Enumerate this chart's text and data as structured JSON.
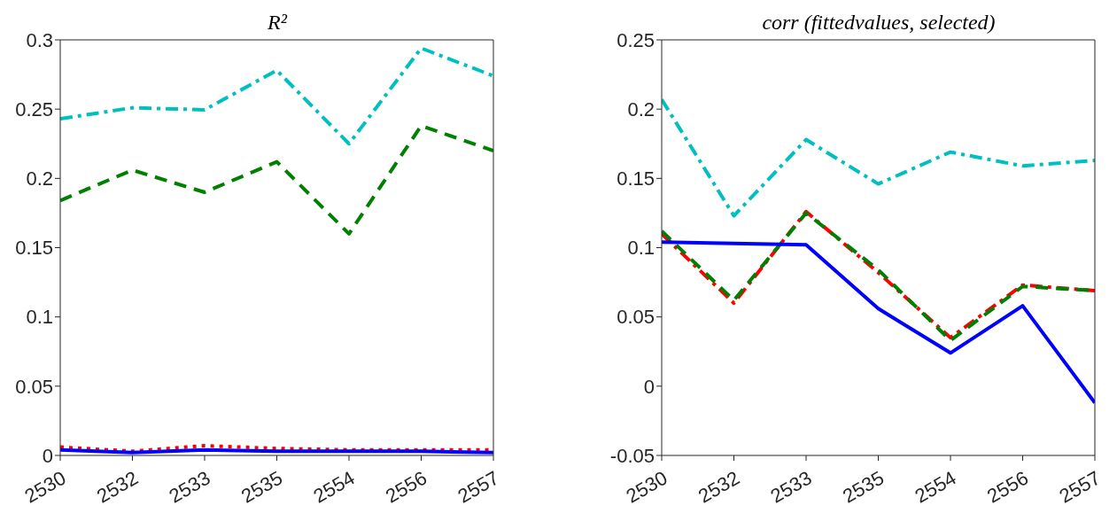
{
  "chart_data": [
    {
      "type": "line",
      "title": "R²",
      "categories": [
        "2530",
        "2532",
        "2533",
        "2535",
        "2554",
        "2556",
        "2557"
      ],
      "ylim": [
        0,
        0.3
      ],
      "yticks": [
        0,
        0.05,
        0.1,
        0.15,
        0.2,
        0.25,
        0.3
      ],
      "series": [
        {
          "color": "#00bfbf",
          "line_style": "dashdot",
          "values": [
            0.243,
            0.251,
            0.2495,
            0.278,
            0.225,
            0.294,
            0.274
          ]
        },
        {
          "color": "#008000",
          "line_style": "dashed",
          "values": [
            0.184,
            0.206,
            0.19,
            0.212,
            0.16,
            0.238,
            0.22
          ]
        },
        {
          "color": "#ff0000",
          "line_style": "dotted",
          "values": [
            0.006,
            0.003,
            0.007,
            0.005,
            0.004,
            0.004,
            0.004
          ]
        },
        {
          "color": "#0000ff",
          "line_style": "solid",
          "values": [
            0.004,
            0.002,
            0.004,
            0.003,
            0.003,
            0.003,
            0.002
          ]
        }
      ]
    },
    {
      "type": "line",
      "title": "corr (fittedvalues, selected)",
      "categories": [
        "2530",
        "2532",
        "2533",
        "2535",
        "2554",
        "2556",
        "2557"
      ],
      "ylim": [
        -0.05,
        0.25
      ],
      "yticks": [
        -0.05,
        0,
        0.05,
        0.1,
        0.15,
        0.2,
        0.25
      ],
      "series": [
        {
          "color": "#00bfbf",
          "line_style": "dashdot",
          "values": [
            0.207,
            0.123,
            0.178,
            0.146,
            0.169,
            0.159,
            0.163
          ]
        },
        {
          "color": "#ff0000",
          "line_style": "dashdot",
          "values": [
            0.11,
            0.06,
            0.126,
            0.082,
            0.035,
            0.073,
            0.069
          ]
        },
        {
          "color": "#008000",
          "line_style": "dashed",
          "values": [
            0.112,
            0.062,
            0.125,
            0.084,
            0.033,
            0.072,
            0.069
          ]
        },
        {
          "color": "#0000ff",
          "line_style": "solid",
          "values": [
            0.104,
            0.103,
            0.102,
            0.056,
            0.024,
            0.058,
            -0.012
          ]
        }
      ]
    }
  ]
}
